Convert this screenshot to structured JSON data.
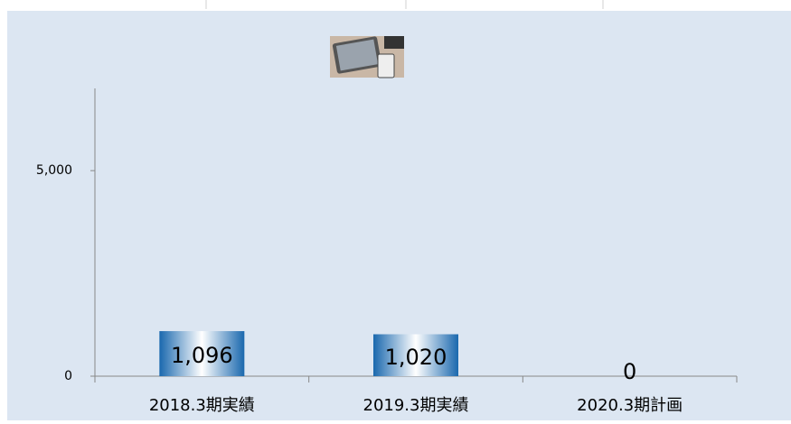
{
  "chart_data": {
    "type": "bar",
    "categories": [
      "2018.3期実績",
      "2019.3期実績",
      "2020.3期計画"
    ],
    "values": [
      1096,
      1020,
      0
    ],
    "value_labels": [
      "1,096",
      "1,020",
      "0"
    ],
    "color": "#1a68ae",
    "ylim": [
      0,
      7000
    ],
    "yticks": [
      0,
      {
        "value": 5000,
        "label": "5,000"
      }
    ]
  }
}
